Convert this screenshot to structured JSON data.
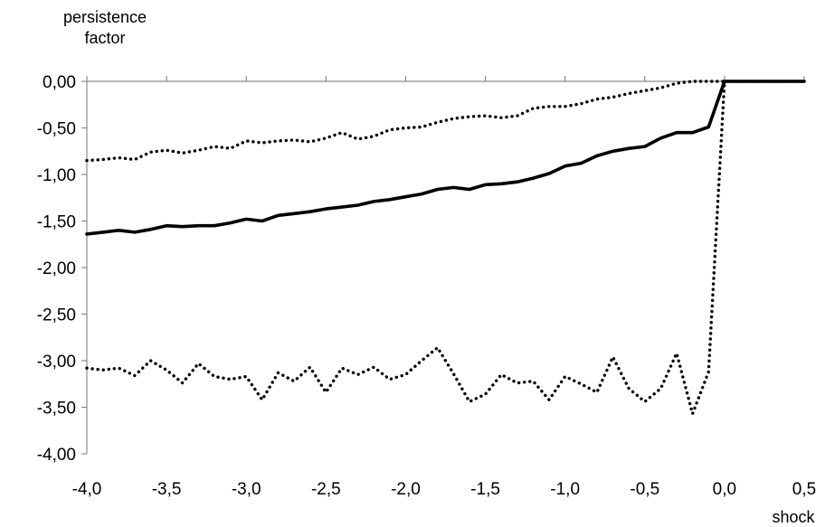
{
  "chart_data": {
    "type": "line",
    "ylabel_lines": [
      "persistence",
      "factor"
    ],
    "xlabel": "shock",
    "xlim": [
      -4.0,
      0.5
    ],
    "ylim": [
      -4.0,
      0.0
    ],
    "x_ticks": [
      -4.0,
      -3.5,
      -3.0,
      -2.5,
      -2.0,
      -1.5,
      -1.0,
      -0.5,
      0.0,
      0.5
    ],
    "x_tick_labels": [
      "-4,0",
      "-3,5",
      "-3,0",
      "-2,5",
      "-2,0",
      "-1,5",
      "-1,0",
      "-0,5",
      "0,0",
      "0,5"
    ],
    "y_ticks": [
      0.0,
      -0.5,
      -1.0,
      -1.5,
      -2.0,
      -2.5,
      -3.0,
      -3.5,
      -4.0
    ],
    "y_tick_labels": [
      "0,00",
      "-0,50",
      "-1,00",
      "-1,50",
      "-2,00",
      "-2,50",
      "-3,00",
      "-3,50",
      "-4,00"
    ],
    "grid": false,
    "legend": "none",
    "series": [
      {
        "style": "solid",
        "color": "#000000",
        "points": [
          [
            -4.0,
            -1.64
          ],
          [
            -3.9,
            -1.62
          ],
          [
            -3.8,
            -1.6
          ],
          [
            -3.7,
            -1.62
          ],
          [
            -3.6,
            -1.59
          ],
          [
            -3.5,
            -1.55
          ],
          [
            -3.4,
            -1.56
          ],
          [
            -3.3,
            -1.55
          ],
          [
            -3.2,
            -1.55
          ],
          [
            -3.1,
            -1.52
          ],
          [
            -3.0,
            -1.48
          ],
          [
            -2.9,
            -1.5
          ],
          [
            -2.8,
            -1.44
          ],
          [
            -2.7,
            -1.42
          ],
          [
            -2.6,
            -1.4
          ],
          [
            -2.5,
            -1.37
          ],
          [
            -2.4,
            -1.35
          ],
          [
            -2.3,
            -1.33
          ],
          [
            -2.2,
            -1.29
          ],
          [
            -2.1,
            -1.27
          ],
          [
            -2.0,
            -1.24
          ],
          [
            -1.9,
            -1.21
          ],
          [
            -1.8,
            -1.16
          ],
          [
            -1.7,
            -1.14
          ],
          [
            -1.6,
            -1.16
          ],
          [
            -1.5,
            -1.11
          ],
          [
            -1.4,
            -1.1
          ],
          [
            -1.3,
            -1.08
          ],
          [
            -1.2,
            -1.04
          ],
          [
            -1.1,
            -0.99
          ],
          [
            -1.0,
            -0.91
          ],
          [
            -0.9,
            -0.88
          ],
          [
            -0.8,
            -0.8
          ],
          [
            -0.7,
            -0.75
          ],
          [
            -0.6,
            -0.72
          ],
          [
            -0.5,
            -0.7
          ],
          [
            -0.4,
            -0.61
          ],
          [
            -0.3,
            -0.55
          ],
          [
            -0.2,
            -0.55
          ],
          [
            -0.1,
            -0.49
          ],
          [
            0.0,
            0.0
          ],
          [
            0.1,
            0.0
          ],
          [
            0.2,
            0.0
          ],
          [
            0.3,
            0.0
          ],
          [
            0.4,
            0.0
          ],
          [
            0.5,
            0.0
          ]
        ]
      },
      {
        "style": "dotted",
        "color": "#000000",
        "points": [
          [
            -4.0,
            -0.85
          ],
          [
            -3.9,
            -0.84
          ],
          [
            -3.8,
            -0.82
          ],
          [
            -3.7,
            -0.84
          ],
          [
            -3.6,
            -0.76
          ],
          [
            -3.5,
            -0.74
          ],
          [
            -3.4,
            -0.77
          ],
          [
            -3.3,
            -0.74
          ],
          [
            -3.2,
            -0.7
          ],
          [
            -3.1,
            -0.72
          ],
          [
            -3.0,
            -0.64
          ],
          [
            -2.9,
            -0.66
          ],
          [
            -2.8,
            -0.64
          ],
          [
            -2.7,
            -0.63
          ],
          [
            -2.6,
            -0.65
          ],
          [
            -2.5,
            -0.61
          ],
          [
            -2.4,
            -0.55
          ],
          [
            -2.3,
            -0.62
          ],
          [
            -2.2,
            -0.59
          ],
          [
            -2.1,
            -0.52
          ],
          [
            -2.0,
            -0.5
          ],
          [
            -1.9,
            -0.49
          ],
          [
            -1.8,
            -0.44
          ],
          [
            -1.7,
            -0.4
          ],
          [
            -1.6,
            -0.38
          ],
          [
            -1.5,
            -0.37
          ],
          [
            -1.4,
            -0.39
          ],
          [
            -1.3,
            -0.37
          ],
          [
            -1.2,
            -0.29
          ],
          [
            -1.1,
            -0.27
          ],
          [
            -1.0,
            -0.27
          ],
          [
            -0.9,
            -0.24
          ],
          [
            -0.8,
            -0.19
          ],
          [
            -0.7,
            -0.17
          ],
          [
            -0.6,
            -0.13
          ],
          [
            -0.5,
            -0.1
          ],
          [
            -0.4,
            -0.07
          ],
          [
            -0.3,
            -0.02
          ],
          [
            -0.2,
            0.0
          ],
          [
            -0.1,
            0.0
          ],
          [
            0.0,
            0.0
          ],
          [
            0.1,
            0.0
          ],
          [
            0.2,
            0.0
          ],
          [
            0.3,
            0.0
          ],
          [
            0.4,
            0.0
          ],
          [
            0.5,
            0.0
          ]
        ]
      },
      {
        "style": "dotted",
        "color": "#000000",
        "points": [
          [
            -4.0,
            -3.08
          ],
          [
            -3.9,
            -3.1
          ],
          [
            -3.8,
            -3.08
          ],
          [
            -3.7,
            -3.16
          ],
          [
            -3.6,
            -3.0
          ],
          [
            -3.5,
            -3.1
          ],
          [
            -3.4,
            -3.24
          ],
          [
            -3.3,
            -3.03
          ],
          [
            -3.2,
            -3.17
          ],
          [
            -3.1,
            -3.2
          ],
          [
            -3.0,
            -3.17
          ],
          [
            -2.9,
            -3.42
          ],
          [
            -2.8,
            -3.13
          ],
          [
            -2.7,
            -3.22
          ],
          [
            -2.6,
            -3.07
          ],
          [
            -2.5,
            -3.34
          ],
          [
            -2.4,
            -3.08
          ],
          [
            -2.3,
            -3.15
          ],
          [
            -2.2,
            -3.07
          ],
          [
            -2.1,
            -3.2
          ],
          [
            -2.0,
            -3.15
          ],
          [
            -1.9,
            -3.0
          ],
          [
            -1.8,
            -2.86
          ],
          [
            -1.7,
            -3.14
          ],
          [
            -1.6,
            -3.44
          ],
          [
            -1.5,
            -3.36
          ],
          [
            -1.4,
            -3.15
          ],
          [
            -1.3,
            -3.24
          ],
          [
            -1.2,
            -3.22
          ],
          [
            -1.1,
            -3.42
          ],
          [
            -1.0,
            -3.17
          ],
          [
            -0.9,
            -3.25
          ],
          [
            -0.8,
            -3.34
          ],
          [
            -0.7,
            -2.96
          ],
          [
            -0.6,
            -3.3
          ],
          [
            -0.5,
            -3.44
          ],
          [
            -0.4,
            -3.3
          ],
          [
            -0.3,
            -2.92
          ],
          [
            -0.2,
            -3.57
          ],
          [
            -0.1,
            -3.12
          ],
          [
            0.0,
            0.0
          ],
          [
            0.1,
            0.0
          ],
          [
            0.2,
            0.0
          ],
          [
            0.3,
            0.0
          ],
          [
            0.4,
            0.0
          ],
          [
            0.5,
            0.0
          ]
        ]
      }
    ]
  }
}
